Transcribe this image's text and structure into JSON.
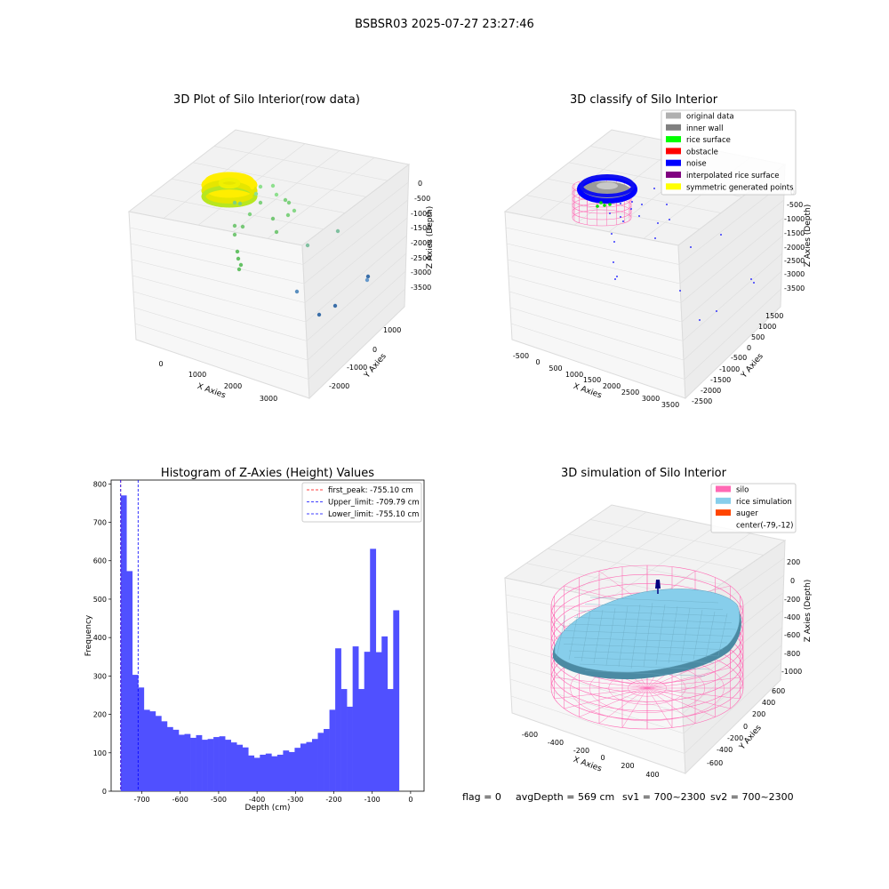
{
  "suptitle": "BSBSR03 2025-07-27 23:27:46",
  "footer": {
    "flag": "flag = 0",
    "avg_depth": "avgDepth = 569 cm",
    "sv1": "sv1 = 700~2300",
    "sv2": "sv2 = 700~2300"
  },
  "colors": {
    "histogram_bar": "#5050ff",
    "first_peak": "#ff0000",
    "limits": "#0000ff",
    "silo_wire": "#ff69b4",
    "rice_surface": "#87ceeb",
    "noise": "#0000ff"
  },
  "chart_data": [
    {
      "id": "raw",
      "type": "scatter",
      "title": "3D Plot of Silo Interior(row data)",
      "xlabel": "X Axies",
      "ylabel": "Y Axies",
      "zlabel": "Z Axies (Depth)",
      "x_ticks": [
        "0",
        "1000",
        "2000",
        "3000"
      ],
      "y_ticks": [
        "-2000",
        "-1000",
        "0",
        "1000"
      ],
      "z_ticks": [
        "0",
        "-500",
        "-1000",
        "-1500",
        "-2000",
        "-2500",
        "-3000",
        "-3500"
      ]
    },
    {
      "id": "classify",
      "type": "scatter",
      "title": "3D classify of Silo Interior",
      "xlabel": "X Axies",
      "ylabel": "Y Axies",
      "zlabel": "Z Axies (Depth)",
      "x_ticks": [
        "-500",
        "0",
        "500",
        "1000",
        "1500",
        "2000",
        "2500",
        "3000",
        "3500"
      ],
      "y_ticks": [
        "-2500",
        "-2000",
        "-1500",
        "-1000",
        "-500",
        "0",
        "500",
        "1000",
        "1500"
      ],
      "z_ticks": [
        "0",
        "-500",
        "-1000",
        "-1500",
        "-2000",
        "-2500",
        "-3000",
        "-3500"
      ],
      "legend_position": "top-right",
      "legend": [
        {
          "label": "original data",
          "color": "#b0b0b0"
        },
        {
          "label": "inner wall",
          "color": "#808080"
        },
        {
          "label": "rice surface",
          "color": "#00ff00"
        },
        {
          "label": "obstacle",
          "color": "#ff0000"
        },
        {
          "label": "noise",
          "color": "#0000ff"
        },
        {
          "label": "interpolated rice surface",
          "color": "#800080"
        },
        {
          "label": "symmetric generated points",
          "color": "#ffff00"
        }
      ]
    },
    {
      "id": "hist",
      "type": "bar",
      "title": "Histogram of Z-Axies (Height) Values",
      "xlabel": "Depth (cm)",
      "ylabel": "Frequency",
      "xlim": [
        -780,
        35
      ],
      "ylim": [
        0,
        810
      ],
      "x_ticks": [
        -700,
        -600,
        -500,
        -400,
        -300,
        -200,
        -100,
        0
      ],
      "y_ticks": [
        0,
        100,
        200,
        300,
        400,
        500,
        600,
        700,
        800
      ],
      "bin_start": -755.1,
      "bin_width": 15.102,
      "values": [
        770,
        573,
        303,
        270,
        212,
        208,
        196,
        182,
        167,
        160,
        147,
        149,
        139,
        146,
        134,
        136,
        141,
        143,
        134,
        127,
        121,
        114,
        93,
        87,
        95,
        98,
        91,
        95,
        106,
        102,
        113,
        124,
        128,
        136,
        152,
        162,
        212,
        372,
        266,
        220,
        377,
        266,
        363,
        631,
        362,
        403,
        266,
        471
      ],
      "lines": [
        {
          "label": "first_peak: -755.10 cm",
          "x": -755.1,
          "color": "#ff0000"
        },
        {
          "label": "Upper_limit: -709.79 cm",
          "x": -709.79,
          "color": "#0000ff"
        },
        {
          "label": "Lower_limit: -755.10 cm",
          "x": -755.1,
          "color": "#0000ff"
        }
      ],
      "legend_position": "top-right"
    },
    {
      "id": "sim",
      "type": "surface",
      "title": "3D simulation of Silo Interior",
      "xlabel": "X Axies",
      "ylabel": "Y Axies",
      "zlabel": "Z Axies (Depth)",
      "x_ticks": [
        "-600",
        "-400",
        "-200",
        "0",
        "200",
        "400"
      ],
      "y_ticks": [
        "-600",
        "-400",
        "-200",
        "0",
        "200",
        "400",
        "600"
      ],
      "z_ticks": [
        "200",
        "0",
        "-200",
        "-400",
        "-600",
        "-800",
        "-1000"
      ],
      "legend_position": "top-right",
      "legend": [
        {
          "label": "silo",
          "color": "#ff69b4"
        },
        {
          "label": "rice simulation",
          "color": "#87ceeb"
        },
        {
          "label": "auger",
          "color": "#ff4500"
        },
        {
          "label": "center(-79,-12)",
          "color": ""
        }
      ]
    }
  ]
}
